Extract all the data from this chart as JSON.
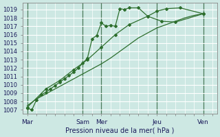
{
  "background_color": "#cde8e3",
  "grid_color": "#b8d8d2",
  "line_color": "#2d6e2d",
  "marker_color": "#2d6e2d",
  "xlabel": "Pression niveau de la mer( hPa )",
  "ylim": [
    1006.5,
    1019.8
  ],
  "yticks": [
    1007,
    1008,
    1009,
    1010,
    1011,
    1012,
    1013,
    1014,
    1015,
    1016,
    1017,
    1018,
    1019
  ],
  "xtick_labels": [
    "Mar",
    "Sam",
    "Mer",
    "Jeu",
    "Ven"
  ],
  "xtick_positions": [
    0,
    6,
    8,
    14,
    19
  ],
  "xlim": [
    -0.5,
    20.5
  ],
  "vlines": [
    0,
    6,
    8,
    14,
    19
  ],
  "series1_x": [
    0,
    0.5,
    1.0,
    1.5,
    2.0,
    2.5,
    3.0,
    3.5,
    4.0,
    4.5,
    5.0,
    5.5,
    6.0,
    6.5,
    7.0,
    7.5,
    8.0,
    8.5,
    9.0,
    9.5,
    10.0,
    10.5,
    11.0,
    12.0,
    13.0,
    14.5,
    16.0,
    19.0
  ],
  "series1_y": [
    1007.2,
    1007.0,
    1008.2,
    1008.8,
    1009.1,
    1009.5,
    1009.9,
    1010.3,
    1010.7,
    1011.1,
    1011.5,
    1012.0,
    1012.6,
    1013.2,
    1015.5,
    1015.9,
    1017.4,
    1017.0,
    1017.1,
    1017.0,
    1019.1,
    1019.0,
    1019.2,
    1019.2,
    1018.2,
    1017.6,
    1017.5,
    1018.5
  ],
  "series2_x": [
    0,
    1.0,
    2.0,
    3.0,
    4.0,
    5.0,
    6.0,
    7.0,
    8.0,
    9.0,
    10.0,
    11.0,
    12.0,
    13.0,
    14.0,
    15.0,
    16.0,
    17.0,
    18.0,
    19.0
  ],
  "series2_y": [
    1007.5,
    1008.3,
    1008.9,
    1009.5,
    1010.1,
    1010.7,
    1011.3,
    1011.9,
    1012.5,
    1013.2,
    1014.0,
    1014.8,
    1015.6,
    1016.2,
    1016.8,
    1017.2,
    1017.6,
    1018.0,
    1018.3,
    1018.5
  ],
  "series3_x": [
    0,
    2.0,
    3.5,
    5.0,
    6.5,
    8.0,
    9.5,
    11.0,
    13.0,
    14.0,
    15.0,
    16.5,
    19.0
  ],
  "series3_y": [
    1007.3,
    1009.5,
    1010.5,
    1011.8,
    1013.0,
    1014.5,
    1016.0,
    1017.2,
    1018.2,
    1018.8,
    1019.1,
    1019.2,
    1018.5
  ]
}
